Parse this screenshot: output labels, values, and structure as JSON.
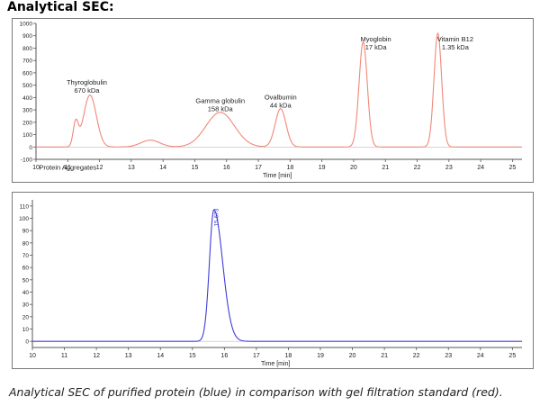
{
  "heading": "Analytical SEC:",
  "caption": "Analytical SEC of purified protein (blue) in comparison with gel filtration standard (red).",
  "colors": {
    "standard": "#f08878",
    "sample": "#3d3dd8",
    "axis": "#555555",
    "text": "#222222"
  },
  "chart_data": [
    {
      "type": "line",
      "title": "",
      "xlabel": "Time [min]",
      "ylabel": "",
      "xlim": [
        10,
        25.3
      ],
      "ylim": [
        -100,
        1000
      ],
      "x_ticks": [
        10,
        11,
        12,
        13,
        14,
        15,
        16,
        17,
        18,
        19,
        20,
        21,
        22,
        23,
        24,
        25
      ],
      "y_ticks": [
        -100,
        0,
        100,
        200,
        300,
        400,
        500,
        600,
        700,
        800,
        900,
        1000
      ],
      "grid": false,
      "series": [
        {
          "baseline": 0,
          "peaks": [
            {
              "time": 11.25,
              "height": 190,
              "width": 0.08
            },
            {
              "time": 11.7,
              "height": 420,
              "width": 0.2
            },
            {
              "time": 13.6,
              "height": 55,
              "width": 0.3
            },
            {
              "time": 15.8,
              "height": 280,
              "width": 0.45
            },
            {
              "time": 17.7,
              "height": 310,
              "width": 0.17
            },
            {
              "time": 20.3,
              "height": 850,
              "width": 0.13
            },
            {
              "time": 22.65,
              "height": 920,
              "width": 0.12
            }
          ]
        }
      ],
      "annotations": [
        {
          "lines": [
            "Thyroglobulin",
            "670 kDa"
          ],
          "x": 11.6,
          "y": 505
        },
        {
          "lines": [
            "Gamma globulin",
            "158 kDa"
          ],
          "x": 15.8,
          "y": 355
        },
        {
          "lines": [
            "Ovalbumin",
            "44 kDa"
          ],
          "x": 17.7,
          "y": 385
        },
        {
          "lines": [
            "Myoglobin",
            "17 kDa"
          ],
          "x": 20.7,
          "y": 855
        },
        {
          "lines": [
            "Vitamin B12",
            "1.35 kDa"
          ],
          "x": 23.2,
          "y": 855
        },
        {
          "lines": [
            "Protein Aggregates"
          ],
          "x": 11.0,
          "y": -185
        }
      ]
    },
    {
      "type": "line",
      "title": "",
      "xlabel": "Time [min]",
      "ylabel": "",
      "xlim": [
        10,
        25.3
      ],
      "ylim": [
        -5,
        115
      ],
      "x_ticks": [
        10,
        11,
        12,
        13,
        14,
        15,
        16,
        17,
        18,
        19,
        20,
        21,
        22,
        23,
        24,
        25
      ],
      "y_ticks": [
        0,
        10,
        20,
        30,
        40,
        50,
        60,
        70,
        80,
        90,
        100,
        110
      ],
      "grid": false,
      "series": [
        {
          "baseline": 0,
          "peaks": [
            {
              "time": 15.673,
              "height": 107,
              "width": 0.14,
              "tail": 0.27
            }
          ]
        }
      ],
      "peak_labels": [
        {
          "text": "15.673",
          "x": 15.673,
          "y": 108
        }
      ]
    }
  ]
}
